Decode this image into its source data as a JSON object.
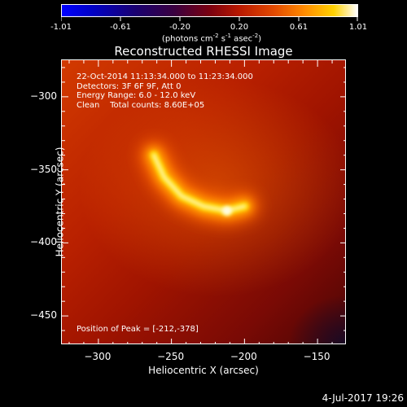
{
  "colorbar": {
    "ticks": [
      "-1.01",
      "-0.61",
      "-0.20",
      "0.20",
      "0.61",
      "1.01"
    ],
    "unit_prefix": "(photons cm",
    "unit_exp1": "-2",
    "unit_mid1": " s",
    "unit_exp2": "-1",
    "unit_mid2": " asec",
    "unit_exp3": "-2",
    "unit_suffix": ")"
  },
  "chart_data": {
    "type": "heatmap",
    "title": "Reconstructed RHESSI Image",
    "xlabel": "Heliocentric X (arcsec)",
    "ylabel": "Heliocentric Y (arcsec)",
    "xlim": [
      -325,
      -130
    ],
    "ylim": [
      -470,
      -275
    ],
    "xticks": [
      -300,
      -250,
      -200,
      -150
    ],
    "yticks": [
      -300,
      -350,
      -400,
      -450
    ],
    "xtick_labels": [
      "−300",
      "−250",
      "−200",
      "−150"
    ],
    "ytick_labels": [
      "−300",
      "−350",
      "−400",
      "−450"
    ],
    "peak": {
      "x": -212,
      "y": -378
    },
    "source_ridge": [
      [
        -262,
        -340
      ],
      [
        -255,
        -355
      ],
      [
        -243,
        -368
      ],
      [
        -228,
        -375
      ],
      [
        -212,
        -378
      ],
      [
        -200,
        -375
      ]
    ]
  },
  "info": {
    "line1": "22-Oct-2014 11:13:34.000 to 11:23:34.000",
    "line2": "Detectors: 3F 6F 9F, Att 0",
    "line3": "Energy Range: 6.0 - 12.0 keV",
    "line4": "Clean    Total counts: 8.60E+05",
    "peak_label": "Position of Peak = [-212,-378]"
  },
  "footer": {
    "date": "4-Jul-2017 19:26"
  }
}
